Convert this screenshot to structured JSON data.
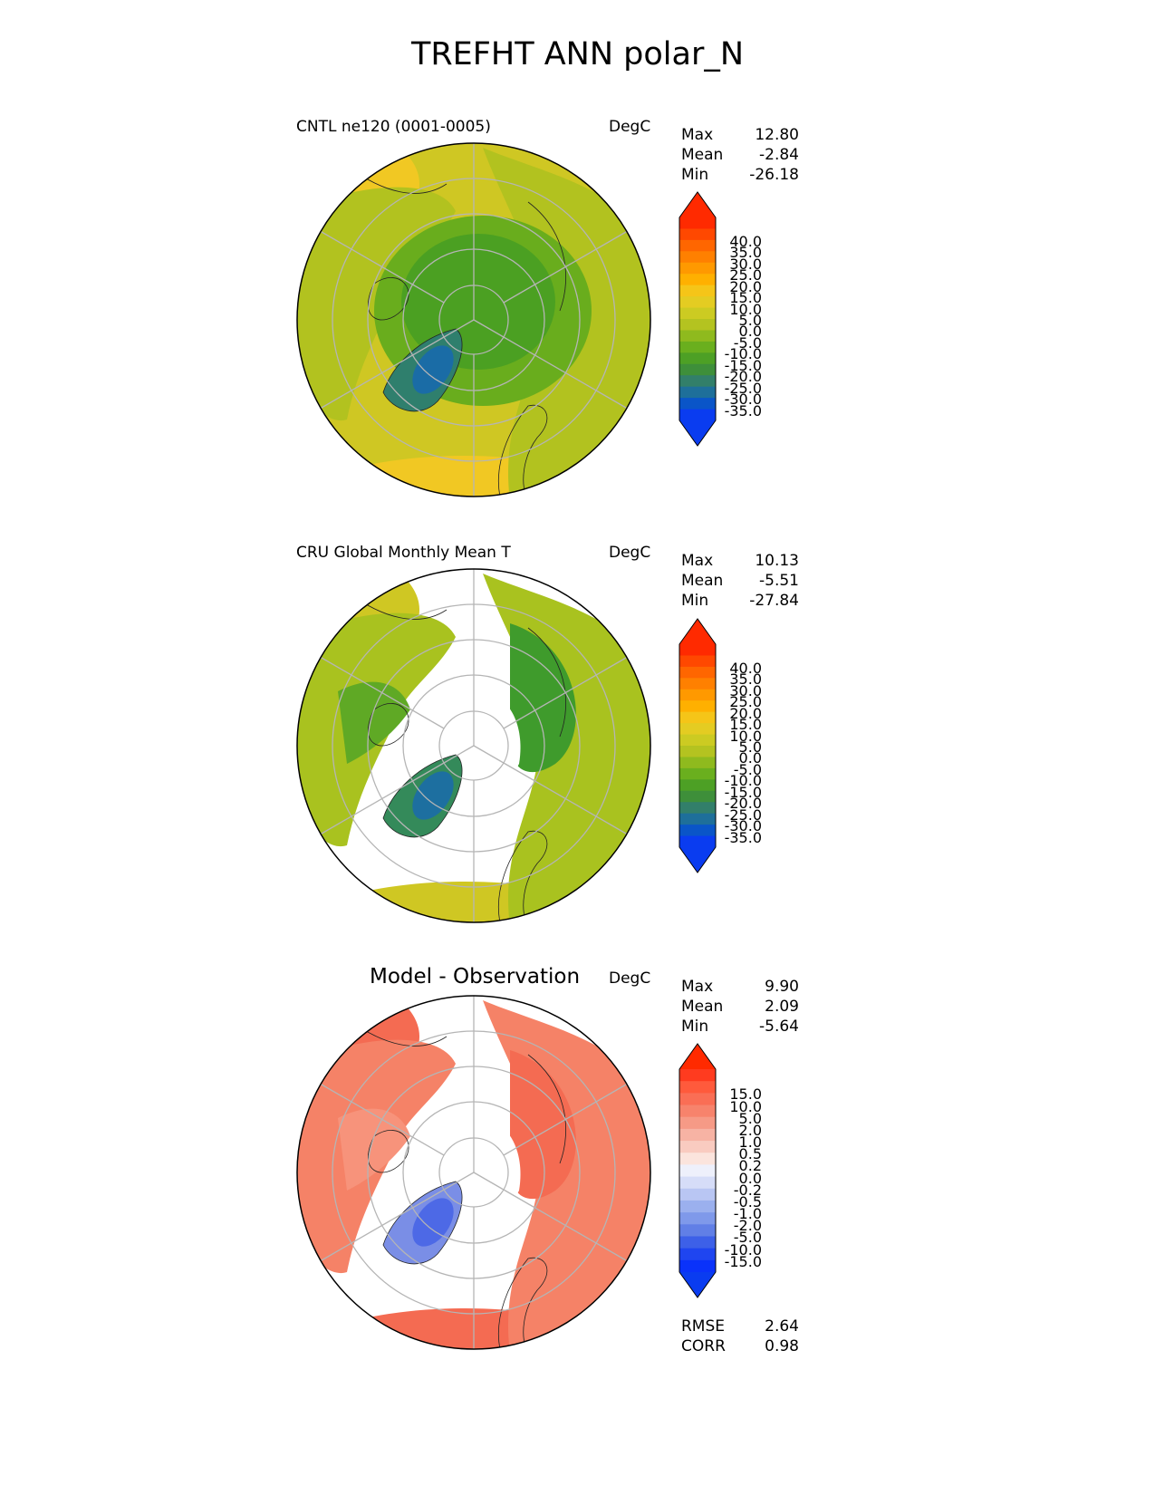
{
  "title": "TREFHT ANN polar_N",
  "panels": [
    {
      "id": "test",
      "title": "CNTL ne120 (0001-0005)",
      "units": "DegC",
      "stats": [
        {
          "label": "Max",
          "value": "12.80"
        },
        {
          "label": "Mean",
          "value": "-2.84"
        },
        {
          "label": "Min",
          "value": "-26.18"
        }
      ],
      "colorbar": {
        "levels": [
          "40.0",
          "35.0",
          "30.0",
          "25.0",
          "20.0",
          "15.0",
          "10.0",
          "5.0",
          "0.0",
          "-5.0",
          "-10.0",
          "-15.0",
          "-20.0",
          "-25.0",
          "-30.0",
          "-35.0"
        ],
        "colors": [
          "#ff2a00",
          "#ff4800",
          "#ff6600",
          "#ff8000",
          "#ff9900",
          "#ffb000",
          "#f5c518",
          "#e4cc22",
          "#cccb22",
          "#b4c320",
          "#8fba1e",
          "#6aaf1e",
          "#4da025",
          "#3e8f3a",
          "#327f6a",
          "#1e6f9a",
          "#0a55c8",
          "#0a3cf0"
        ],
        "top_color": "#ff2a00",
        "bottom_color": "#0a3cf0"
      },
      "map": {
        "ocean": "#cfc723",
        "land": "#b2c21f",
        "inner": "#69ad1d",
        "core": "#4ba022",
        "greenland": "#2f7f6d",
        "greenland_core": "#1a6ca6",
        "south_band": "#f1c823",
        "has_mask": false
      }
    },
    {
      "id": "reference",
      "title": "CRU Global Monthly Mean T",
      "units": "DegC",
      "stats": [
        {
          "label": "Max",
          "value": "10.13"
        },
        {
          "label": "Mean",
          "value": "-5.51"
        },
        {
          "label": "Min",
          "value": "-27.84"
        }
      ],
      "colorbar": {
        "levels": [
          "40.0",
          "35.0",
          "30.0",
          "25.0",
          "20.0",
          "15.0",
          "10.0",
          "5.0",
          "0.0",
          "-5.0",
          "-10.0",
          "-15.0",
          "-20.0",
          "-25.0",
          "-30.0",
          "-35.0"
        ],
        "colors": [
          "#ff2a00",
          "#ff4800",
          "#ff6600",
          "#ff8000",
          "#ff9900",
          "#ffb000",
          "#f5c518",
          "#e4cc22",
          "#cccb22",
          "#b4c320",
          "#8fba1e",
          "#6aaf1e",
          "#4da025",
          "#3e8f3a",
          "#327f6a",
          "#1e6f9a",
          "#0a55c8",
          "#0a3cf0"
        ],
        "top_color": "#ff2a00",
        "bottom_color": "#0a3cf0"
      },
      "map": {
        "ocean": "#ffffff",
        "land": "#a9c21f",
        "inner": "#5fa925",
        "core": "#3f9b2c",
        "greenland": "#348a5a",
        "greenland_core": "#1d6fa0",
        "south_band": "#cfc723",
        "has_mask": true
      }
    },
    {
      "id": "diff",
      "title": "Model - Observation",
      "units": "DegC",
      "stats": [
        {
          "label": "Max",
          "value": "9.90"
        },
        {
          "label": "Mean",
          "value": "2.09"
        },
        {
          "label": "Min",
          "value": "-5.64"
        }
      ],
      "extra_stats": [
        {
          "label": "RMSE",
          "value": "2.64"
        },
        {
          "label": "CORR",
          "value": "0.98"
        }
      ],
      "colorbar": {
        "levels": [
          "15.0",
          "10.0",
          "5.0",
          "2.0",
          "1.0",
          "0.5",
          "0.2",
          "0.0",
          "-0.2",
          "-0.5",
          "-1.0",
          "-2.0",
          "-5.0",
          "-10.0",
          "-15.0"
        ],
        "colors": [
          "#ff3b1f",
          "#ff5a3c",
          "#fa6e55",
          "#f7836c",
          "#f69a86",
          "#f7b3a4",
          "#f9cbc0",
          "#fbe4dd",
          "#eef0fb",
          "#d6ddf8",
          "#b9c6f3",
          "#9bb0ee",
          "#7f99ea",
          "#617fe6",
          "#3d60e8",
          "#1f45f0",
          "#0a32fa"
        ],
        "top_color": "#ff2a00",
        "bottom_color": "#0a3cf0"
      },
      "map": {
        "ocean": "#ffffff",
        "land": "#f58267",
        "inner": "#f7937b",
        "core": "#f46b52",
        "greenland": "#7a8ee6",
        "greenland_core": "#4d69e6",
        "south_band": "#f46b52",
        "has_mask": true
      }
    }
  ]
}
